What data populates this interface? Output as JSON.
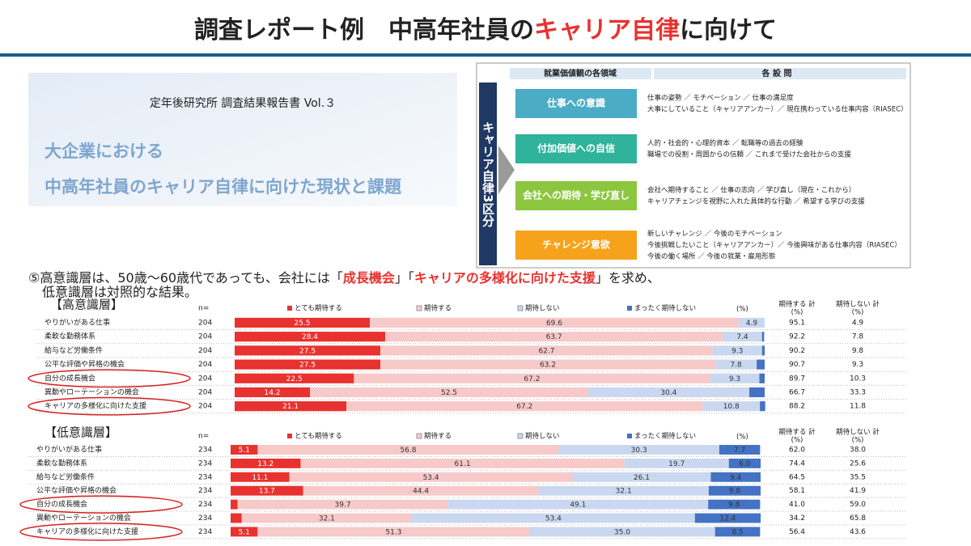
{
  "title": {
    "before": "調査レポート例　中高年社員の",
    "highlight": "キャリア自律",
    "after": "に向けて"
  },
  "report": {
    "publisher": "定年後研究所 調査結果報告書 Vol.３",
    "title_lines": [
      "大企業における",
      "中高年社員のキャリア自律に向けた現状と課題"
    ]
  },
  "framework": {
    "header_left": "就業価値観の各領域",
    "header_right": "各 設 問",
    "side_label": "キャリア自律3区分",
    "areas": [
      {
        "name": "仕事への意識",
        "color": "#4bacc6",
        "questions": [
          "仕事の姿勢 ／ モチベーション ／ 仕事の満足度",
          "大事にしていること（キャリアアンカー）／ 現在携わっている仕事内容（RIASEC）"
        ]
      },
      {
        "name": "付加価値への自信",
        "color": "#2fb39a",
        "questions": [
          "人的・社会的・心理的資本 ／ 転職等の過去の経験",
          "職場での役割・周囲からの信頼 ／ これまで受けた会社からの支援"
        ]
      },
      {
        "name": "会社への期待・学び直し",
        "color": "#8cc63f",
        "questions": [
          "会社へ期待すること ／ 仕事の志向 ／ 学び直し（現在・これから）",
          "キャリアチェンジを視野に入れた具体的な行動 ／ 希望する学びの支援"
        ]
      },
      {
        "name": "チャレンジ意欲",
        "color": "#f7a21b",
        "questions": [
          "新しいチャレンジ ／ 今後のモチベーション",
          "今後挑戦したいこと（キャリアアンカー）／ 今後興味がある仕事内容（RIASEC）",
          "今後の働く場所 ／ 今後の就業・雇用形態"
        ]
      }
    ]
  },
  "caption": {
    "line1": [
      {
        "text": "⑤高意識層は、50歳～60歳代であっても、会社には「",
        "highlight": false
      },
      {
        "text": "成長機会",
        "highlight": true
      },
      {
        "text": "」「",
        "highlight": false
      },
      {
        "text": "キャリアの多様化に向けた支援",
        "highlight": true
      },
      {
        "text": "」を求め、",
        "highlight": false
      }
    ],
    "line2": "低意識層は対照的な結果。"
  },
  "chart_data": [
    {
      "type": "stacked_bar",
      "title": "【高意識層】",
      "n_label": "n=",
      "unit_label": "(%)",
      "total_headers": [
        [
          "期待する 計",
          "(%)"
        ],
        [
          "期待しない 計",
          "(%)"
        ]
      ],
      "categories": [
        "やりがいがある仕事",
        "柔軟な勤務体系",
        "給与など労働条件",
        "公平な評価や昇格の機会",
        "自分の成長機会",
        "異動やローテーションの機会",
        "キャリアの多様化に向けた支援"
      ],
      "n": [
        "204",
        "204",
        "204",
        "204",
        "204",
        "204",
        "204"
      ],
      "xlim": [
        0,
        100
      ],
      "series": [
        {
          "name": "とても期待する",
          "color": "#e8322f",
          "values": [
            25.5,
            28.4,
            27.5,
            27.5,
            22.5,
            14.2,
            21.1
          ],
          "value_labels": [
            "25.5",
            "28.4",
            "27.5",
            "27.5",
            "22.5",
            "14.2",
            "21.1"
          ]
        },
        {
          "name": "期待する",
          "color": "#f7c9c9",
          "values": [
            69.6,
            63.7,
            62.7,
            63.2,
            67.2,
            52.5,
            67.2
          ],
          "value_labels": [
            "69.6",
            "63.7",
            "62.7",
            "63.2",
            "67.2",
            "52.5",
            "67.2"
          ]
        },
        {
          "name": "期待しない",
          "color": "#c9d8f0",
          "values": [
            4.9,
            7.4,
            9.3,
            7.8,
            9.3,
            30.4,
            10.8
          ],
          "value_labels": [
            "4.9",
            "7.4",
            "9.3",
            "7.8",
            "9.3",
            "30.4",
            "10.8"
          ]
        },
        {
          "name": "まったく期待しない",
          "color": "#4472c4",
          "values": [
            0,
            0.4,
            0.5,
            1.5,
            1.0,
            2.9,
            1.0
          ],
          "value_labels": [
            null,
            null,
            null,
            null,
            null,
            null,
            null
          ]
        }
      ],
      "totals": [
        [
          "95.1",
          "4.9"
        ],
        [
          "92.2",
          "7.8"
        ],
        [
          "90.2",
          "9.8"
        ],
        [
          "90.7",
          "9.3"
        ],
        [
          "89.7",
          "10.3"
        ],
        [
          "66.7",
          "33.3"
        ],
        [
          "88.2",
          "11.8"
        ]
      ]
    },
    {
      "type": "stacked_bar",
      "title": "【低意識層】",
      "n_label": "n=",
      "unit_label": "(%)",
      "total_headers": [
        [
          "期待する 計",
          "(%)"
        ],
        [
          "期待しない 計",
          "(%)"
        ]
      ],
      "categories": [
        "やりがいがある仕事",
        "柔軟な勤務体系",
        "給与など労働条件",
        "公平な評価や昇格の機会",
        "自分の成長機会",
        "異動やローテーションの機会",
        "キャリアの多様化に向けた支援"
      ],
      "n": [
        "234",
        "234",
        "234",
        "234",
        "234",
        "234",
        "234"
      ],
      "xlim": [
        0,
        100
      ],
      "series": [
        {
          "name": "とても期待する",
          "color": "#e8322f",
          "values": [
            5.1,
            13.2,
            11.1,
            13.7,
            1.3,
            2.1,
            5.1
          ],
          "value_labels": [
            "5.1",
            "13.2",
            "11.1",
            "13.7",
            null,
            null,
            "5.1"
          ]
        },
        {
          "name": "期待する",
          "color": "#f7c9c9",
          "values": [
            56.8,
            61.1,
            53.4,
            44.4,
            39.7,
            32.1,
            51.3
          ],
          "value_labels": [
            "56.8",
            "61.1",
            "53.4",
            "44.4",
            "39.7",
            "32.1",
            "51.3"
          ]
        },
        {
          "name": "期待しない",
          "color": "#c9d8f0",
          "values": [
            30.3,
            19.7,
            26.1,
            32.1,
            49.1,
            53.4,
            35.0
          ],
          "value_labels": [
            "30.3",
            "19.7",
            "26.1",
            "32.1",
            "49.1",
            "53.4",
            "35.0"
          ]
        },
        {
          "name": "まったく期待しない",
          "color": "#4472c4",
          "values": [
            7.7,
            6.0,
            9.4,
            9.8,
            9.8,
            12.4,
            8.5
          ],
          "value_labels": [
            "7.7",
            "6.0",
            "9.4",
            "9.8",
            "9.8",
            "12.4",
            "8.5"
          ]
        }
      ],
      "totals": [
        [
          "62.0",
          "38.0"
        ],
        [
          "74.4",
          "25.6"
        ],
        [
          "64.5",
          "35.5"
        ],
        [
          "58.1",
          "41.9"
        ],
        [
          "41.0",
          "59.0"
        ],
        [
          "34.2",
          "65.8"
        ],
        [
          "56.4",
          "43.6"
        ]
      ]
    }
  ]
}
